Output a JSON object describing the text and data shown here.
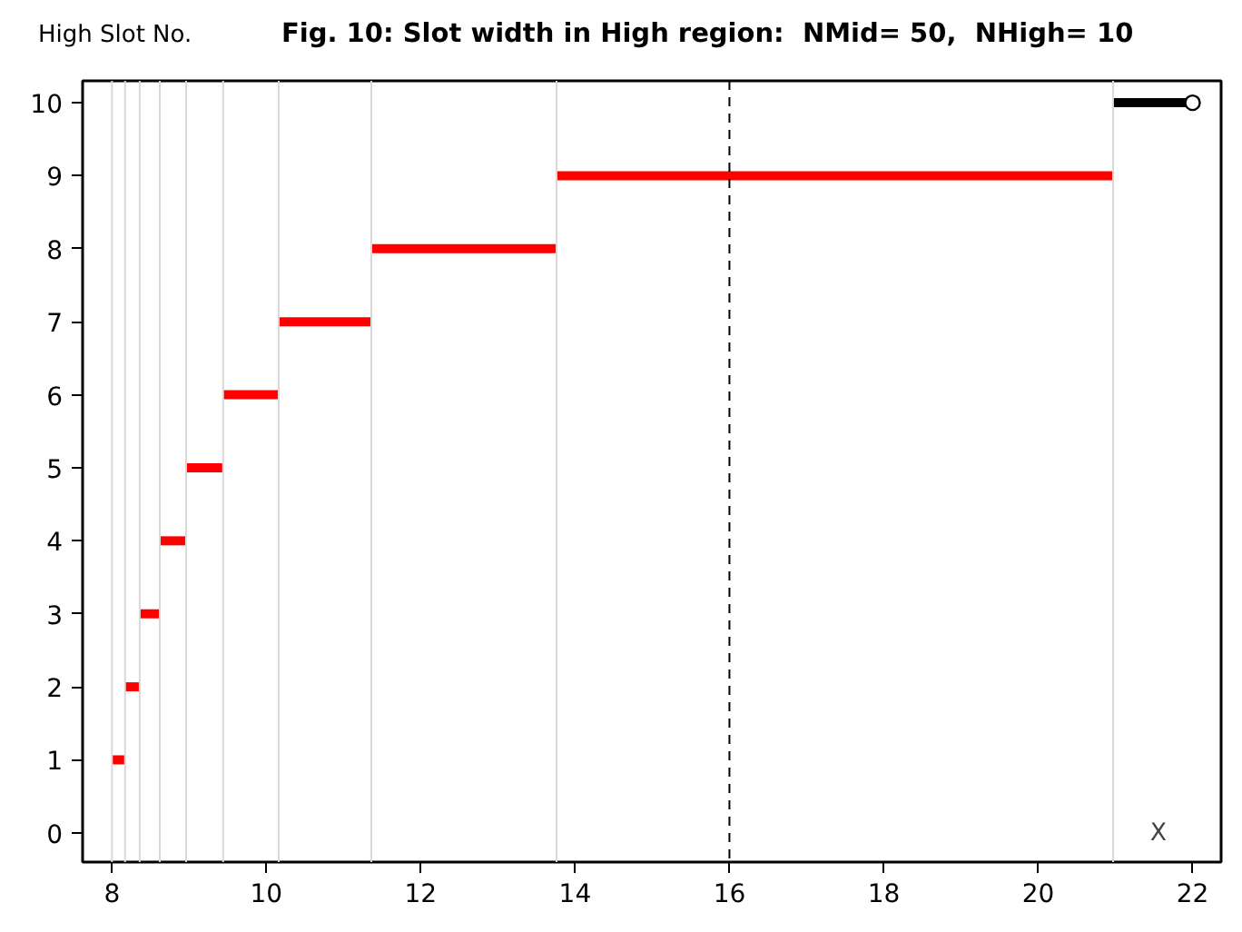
{
  "chart_data": {
    "type": "line",
    "title": "Fig. 10: Slot width in High region:  NMid= 50,  NHigh= 10",
    "ylabel": "High Slot No.",
    "xlabel": "X",
    "series": [
      {
        "x": [
          8.0,
          8.17
        ],
        "values": [
          1,
          1
        ],
        "color": "#ff0000"
      },
      {
        "x": [
          8.17,
          8.36
        ],
        "values": [
          2,
          2
        ],
        "color": "#ff0000"
      },
      {
        "x": [
          8.36,
          8.62
        ],
        "values": [
          3,
          3
        ],
        "color": "#ff0000"
      },
      {
        "x": [
          8.62,
          8.96
        ],
        "values": [
          4,
          4
        ],
        "color": "#ff0000"
      },
      {
        "x": [
          8.96,
          9.44
        ],
        "values": [
          5,
          5
        ],
        "color": "#ff0000"
      },
      {
        "x": [
          9.44,
          10.16
        ],
        "values": [
          6,
          6
        ],
        "color": "#ff0000"
      },
      {
        "x": [
          10.16,
          11.36
        ],
        "values": [
          7,
          7
        ],
        "color": "#ff0000"
      },
      {
        "x": [
          11.36,
          13.76
        ],
        "values": [
          8,
          8
        ],
        "color": "#ff0000"
      },
      {
        "x": [
          13.76,
          20.97
        ],
        "values": [
          9,
          9
        ],
        "color": "#ff0000"
      },
      {
        "x": [
          20.97,
          22.0
        ],
        "values": [
          10,
          10
        ],
        "color": "#000000"
      },
      {
        "type": "scatter",
        "x": [
          22.0
        ],
        "values": [
          10
        ],
        "color": "#ffffff",
        "marker": "circle"
      }
    ],
    "xlim": [
      7.62,
      22.37
    ],
    "xticks": [
      8,
      10,
      12,
      14,
      16,
      18,
      20,
      22
    ],
    "ylim": [
      -0.4,
      10.3
    ],
    "yticks": [
      0,
      1,
      2,
      3,
      4,
      5,
      6,
      7,
      8,
      9,
      10
    ],
    "ref_lines": [
      {
        "axis": "x",
        "value": 8.0,
        "color": "#d9d9d9"
      },
      {
        "axis": "x",
        "value": 8.17,
        "color": "#d9d9d9"
      },
      {
        "axis": "x",
        "value": 8.36,
        "color": "#d9d9d9"
      },
      {
        "axis": "x",
        "value": 8.62,
        "color": "#d9d9d9"
      },
      {
        "axis": "x",
        "value": 8.96,
        "color": "#d9d9d9"
      },
      {
        "axis": "x",
        "value": 9.44,
        "color": "#d9d9d9"
      },
      {
        "axis": "x",
        "value": 10.16,
        "color": "#d9d9d9"
      },
      {
        "axis": "x",
        "value": 11.36,
        "color": "#d9d9d9"
      },
      {
        "axis": "x",
        "value": 13.76,
        "color": "#d9d9d9"
      },
      {
        "axis": "x",
        "value": 20.97,
        "color": "#d9d9d9"
      },
      {
        "axis": "x",
        "value": 16,
        "color": "#000000",
        "line_style": "dashed"
      }
    ],
    "grid": false
  }
}
